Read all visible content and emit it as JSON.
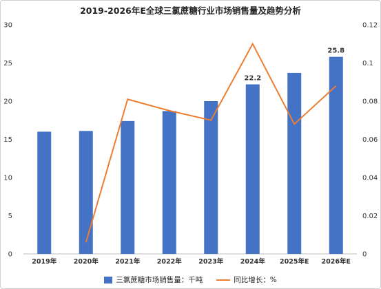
{
  "chart_data": {
    "type": "bar",
    "title": "2019-2026年E全球三氯蔗糖行业市场销售量及趋势分析",
    "categories": [
      "2019年",
      "2020年",
      "2021年",
      "2022年",
      "2023年",
      "2024年",
      "2025年E",
      "2026年E"
    ],
    "series": [
      {
        "name": "三氯蔗糖市场销售量：千吨",
        "type": "bar",
        "axis": "left",
        "color": "#4472c4",
        "values": [
          16.0,
          16.1,
          17.4,
          18.7,
          20.0,
          22.2,
          23.7,
          25.8
        ],
        "data_labels": [
          null,
          null,
          null,
          null,
          null,
          "22.2",
          null,
          "25.8"
        ]
      },
      {
        "name": "同比增长：%",
        "type": "line",
        "axis": "right",
        "color": "#ed7d31",
        "values": [
          null,
          0.006,
          0.081,
          0.075,
          0.07,
          0.11,
          0.068,
          0.088
        ]
      }
    ],
    "ylim": [
      0,
      30
    ],
    "y_ticks": [
      "0",
      "5",
      "10",
      "15",
      "20",
      "25",
      "30"
    ],
    "y2lim": [
      0,
      0.12
    ],
    "y2_ticks": [
      "0",
      "0.02",
      "0.04",
      "0.06",
      "0.08",
      "0.1",
      "0.12"
    ],
    "grid": false,
    "legend_position": "bottom"
  }
}
